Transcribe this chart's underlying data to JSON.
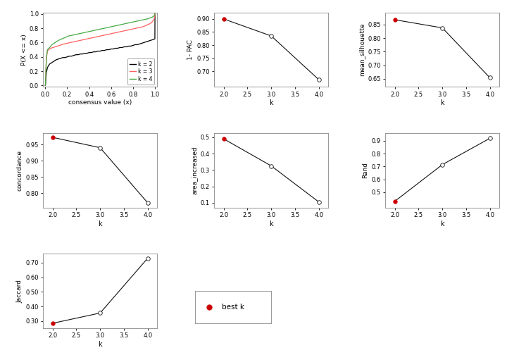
{
  "ecdf": {
    "k2": {
      "x": [
        0.0,
        0.001,
        0.01,
        0.02,
        0.03,
        0.04,
        0.05,
        0.06,
        0.07,
        0.08,
        0.09,
        0.1,
        0.12,
        0.14,
        0.16,
        0.18,
        0.2,
        0.22,
        0.24,
        0.26,
        0.28,
        0.3,
        0.32,
        0.34,
        0.36,
        0.38,
        0.4,
        0.42,
        0.44,
        0.46,
        0.48,
        0.5,
        0.52,
        0.54,
        0.56,
        0.58,
        0.6,
        0.62,
        0.64,
        0.66,
        0.68,
        0.7,
        0.72,
        0.74,
        0.76,
        0.78,
        0.8,
        0.82,
        0.84,
        0.86,
        0.88,
        0.9,
        0.92,
        0.94,
        0.96,
        0.98,
        0.999,
        1.0
      ],
      "y": [
        0.0,
        0.0,
        0.18,
        0.25,
        0.28,
        0.3,
        0.31,
        0.32,
        0.33,
        0.34,
        0.35,
        0.36,
        0.37,
        0.38,
        0.39,
        0.39,
        0.4,
        0.41,
        0.41,
        0.42,
        0.43,
        0.43,
        0.44,
        0.44,
        0.45,
        0.45,
        0.46,
        0.46,
        0.47,
        0.47,
        0.48,
        0.48,
        0.49,
        0.49,
        0.5,
        0.5,
        0.51,
        0.51,
        0.52,
        0.52,
        0.53,
        0.53,
        0.54,
        0.54,
        0.55,
        0.55,
        0.56,
        0.57,
        0.57,
        0.58,
        0.59,
        0.6,
        0.61,
        0.62,
        0.63,
        0.64,
        0.65,
        1.0
      ],
      "color": "#000000"
    },
    "k3": {
      "x": [
        0.0,
        0.001,
        0.01,
        0.02,
        0.03,
        0.05,
        0.07,
        0.09,
        0.11,
        0.13,
        0.15,
        0.17,
        0.2,
        0.23,
        0.26,
        0.29,
        0.32,
        0.35,
        0.38,
        0.41,
        0.44,
        0.47,
        0.5,
        0.53,
        0.56,
        0.59,
        0.62,
        0.65,
        0.68,
        0.71,
        0.74,
        0.77,
        0.8,
        0.83,
        0.86,
        0.89,
        0.92,
        0.95,
        0.97,
        0.99,
        0.999,
        1.0
      ],
      "y": [
        0.0,
        0.0,
        0.38,
        0.48,
        0.5,
        0.52,
        0.53,
        0.54,
        0.55,
        0.56,
        0.57,
        0.58,
        0.59,
        0.6,
        0.61,
        0.62,
        0.63,
        0.64,
        0.65,
        0.66,
        0.67,
        0.68,
        0.69,
        0.7,
        0.71,
        0.72,
        0.73,
        0.74,
        0.75,
        0.76,
        0.77,
        0.78,
        0.79,
        0.8,
        0.81,
        0.82,
        0.84,
        0.86,
        0.88,
        0.92,
        0.97,
        1.0
      ],
      "color": "#ff6060"
    },
    "k4": {
      "x": [
        0.0,
        0.001,
        0.01,
        0.02,
        0.04,
        0.06,
        0.09,
        0.12,
        0.15,
        0.18,
        0.21,
        0.24,
        0.27,
        0.3,
        0.33,
        0.36,
        0.39,
        0.42,
        0.45,
        0.48,
        0.51,
        0.54,
        0.57,
        0.6,
        0.63,
        0.66,
        0.69,
        0.72,
        0.75,
        0.78,
        0.81,
        0.84,
        0.87,
        0.9,
        0.93,
        0.95,
        0.97,
        0.99,
        0.999,
        1.0
      ],
      "y": [
        0.0,
        0.0,
        0.4,
        0.5,
        0.53,
        0.57,
        0.6,
        0.63,
        0.65,
        0.67,
        0.69,
        0.7,
        0.71,
        0.72,
        0.73,
        0.74,
        0.75,
        0.76,
        0.77,
        0.78,
        0.79,
        0.8,
        0.81,
        0.82,
        0.83,
        0.84,
        0.85,
        0.86,
        0.87,
        0.88,
        0.89,
        0.9,
        0.91,
        0.92,
        0.93,
        0.94,
        0.95,
        0.97,
        0.99,
        1.0
      ],
      "color": "#44aa44"
    }
  },
  "pac": {
    "k": [
      2,
      3,
      4
    ],
    "values": [
      0.9,
      0.835,
      0.668
    ],
    "best_k": 2,
    "ylabel": "1- PAC",
    "yticks": [
      0.7,
      0.75,
      0.8,
      0.85,
      0.9
    ],
    "ytick_labels": [
      "0.70",
      "0.75",
      "0.80",
      "0.85",
      "0.90"
    ],
    "ylim": [
      0.64,
      0.925
    ]
  },
  "silhouette": {
    "k": [
      2,
      3,
      4
    ],
    "values": [
      0.868,
      0.838,
      0.654
    ],
    "best_k": 2,
    "ylabel": "mean_silhouette",
    "yticks": [
      0.65,
      0.7,
      0.75,
      0.8,
      0.85
    ],
    "ytick_labels": [
      "0.65",
      "0.70",
      "0.75",
      "0.80",
      "0.85"
    ],
    "ylim": [
      0.62,
      0.895
    ]
  },
  "concordance": {
    "k": [
      2,
      3,
      4
    ],
    "values": [
      0.972,
      0.94,
      0.77
    ],
    "best_k": 2,
    "ylabel": "concordance",
    "yticks": [
      0.8,
      0.85,
      0.9,
      0.95
    ],
    "ytick_labels": [
      "0.80",
      "0.85",
      "0.90",
      "0.95"
    ],
    "ylim": [
      0.755,
      0.985
    ]
  },
  "area_increased": {
    "k": [
      2,
      3,
      4
    ],
    "values": [
      0.49,
      0.325,
      0.105
    ],
    "best_k": 2,
    "ylabel": "area_increased",
    "yticks": [
      0.1,
      0.2,
      0.3,
      0.4,
      0.5
    ],
    "ytick_labels": [
      "0.1",
      "0.2",
      "0.3",
      "0.4",
      "0.5"
    ],
    "ylim": [
      0.07,
      0.525
    ]
  },
  "rand": {
    "k": [
      2,
      3,
      4
    ],
    "values": [
      0.43,
      0.715,
      0.92
    ],
    "best_k": 2,
    "ylabel": "Rand",
    "yticks": [
      0.5,
      0.6,
      0.7,
      0.8,
      0.9
    ],
    "ytick_labels": [
      "0.5",
      "0.6",
      "0.7",
      "0.8",
      "0.9"
    ],
    "ylim": [
      0.38,
      0.96
    ]
  },
  "jaccard": {
    "k": [
      2,
      3,
      4
    ],
    "values": [
      0.285,
      0.355,
      0.73
    ],
    "best_k": 2,
    "ylabel": "Jaccard",
    "yticks": [
      0.3,
      0.4,
      0.5,
      0.6,
      0.7
    ],
    "ytick_labels": [
      "0.30",
      "0.40",
      "0.50",
      "0.60",
      "0.70"
    ],
    "ylim": [
      0.25,
      0.76
    ]
  },
  "ecdf_xlabel": "consensus value (x)",
  "ecdf_ylabel": "P(X <= x)",
  "k_xlabel": "k",
  "best_dot_color": "#cc0000",
  "open_dot_color": "#ffffff",
  "line_color": "#111111",
  "bg_color": "#ffffff"
}
